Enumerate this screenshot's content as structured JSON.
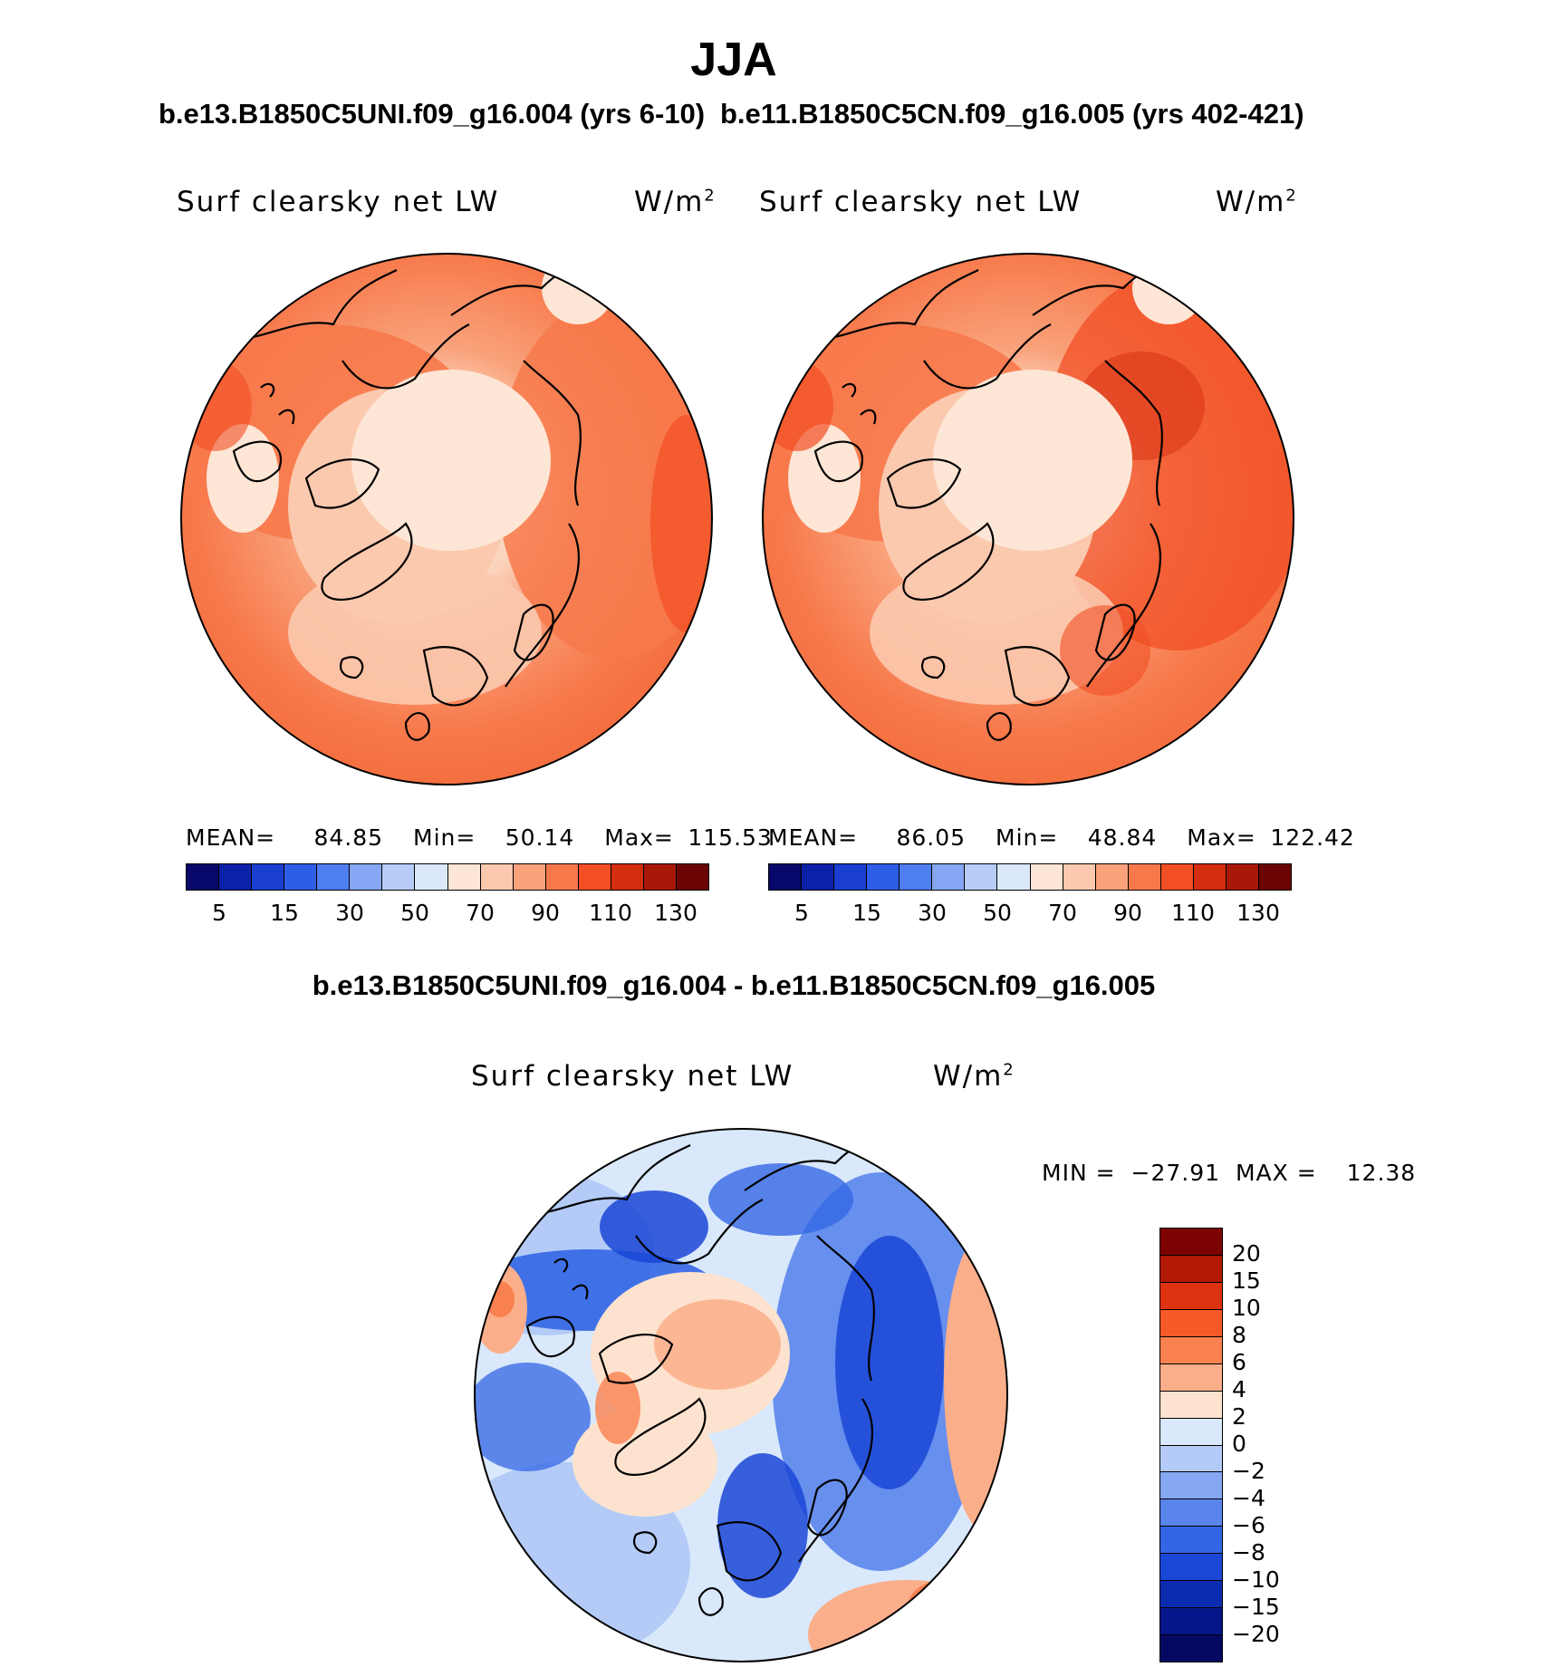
{
  "title": "JJA",
  "chart_data": [
    {
      "type": "heatmap",
      "projection": "north-polar-stereographic",
      "case_title": "b.e13.B1850C5UNI.f09_g16.004 (yrs 6-10)",
      "variable": "Surf clearsky net LW",
      "units": "W/m",
      "units_exp": "2",
      "stats": {
        "mean_label": "MEAN=",
        "mean": "84.85",
        "min_label": "Min=",
        "min": "50.14",
        "max_label": "Max=",
        "max": "115.53"
      },
      "colorbar_ticks": [
        "5",
        "15",
        "30",
        "50",
        "70",
        "90",
        "110",
        "130"
      ]
    },
    {
      "type": "heatmap",
      "projection": "north-polar-stereographic",
      "case_title": "b.e11.B1850C5CN.f09_g16.005 (yrs 402-421)",
      "variable": "Surf clearsky net LW",
      "units": "W/m",
      "units_exp": "2",
      "stats": {
        "mean_label": "MEAN=",
        "mean": "86.05",
        "min_label": "Min=",
        "min": "48.84",
        "max_label": "Max=",
        "max": "122.42"
      },
      "colorbar_ticks": [
        "5",
        "15",
        "30",
        "50",
        "70",
        "90",
        "110",
        "130"
      ]
    },
    {
      "type": "heatmap",
      "projection": "north-polar-stereographic",
      "case_title": "b.e13.B1850C5UNI.f09_g16.004 - b.e11.B1850C5CN.f09_g16.005",
      "variable": "Surf clearsky net LW",
      "units": "W/m",
      "units_exp": "2",
      "stats": {
        "min_label": "MIN =",
        "min": "−27.91",
        "max_label": "MAX =",
        "max": "12.38"
      },
      "colorbar_ticks": [
        "20",
        "15",
        "10",
        "8",
        "6",
        "4",
        "2",
        "0",
        "−2",
        "−4",
        "−6",
        "−8",
        "−10",
        "−15",
        "−20"
      ]
    }
  ],
  "colors": {
    "abs_scale": [
      "#08086b",
      "#0b22a8",
      "#1a3fd0",
      "#2e5ee8",
      "#4f7ef0",
      "#86a8f4",
      "#b7cdf8",
      "#dbe8fa",
      "#fde6d5",
      "#fbc9ae",
      "#f9a27b",
      "#f7794b",
      "#f24f24",
      "#d42e10",
      "#a81808",
      "#6b0404"
    ],
    "diff_scale": [
      "#7d0303",
      "#b21906",
      "#de3310",
      "#f85a27",
      "#f98150",
      "#fbae8a",
      "#fde3cf",
      "#d9e8fa",
      "#b3cbf6",
      "#86a8f2",
      "#5a85ec",
      "#3366e4",
      "#1a47d6",
      "#0c2cb0",
      "#06168a",
      "#040863"
    ]
  }
}
